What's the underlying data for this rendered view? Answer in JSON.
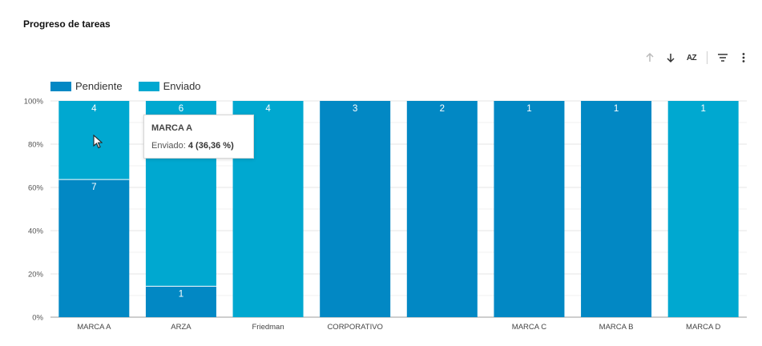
{
  "title": "Progreso de tareas",
  "toolbar": {
    "icons": [
      "arrow-up-icon",
      "arrow-down-icon",
      "sort-az-icon",
      "filter-icon",
      "more-vert-icon"
    ],
    "sort_label": "AZ"
  },
  "colors": {
    "pendiente": "#0288C4",
    "enviado": "#00A8D0"
  },
  "chart_data": {
    "type": "bar",
    "stacked": true,
    "normalized": true,
    "categories": [
      "MARCA A",
      "ARZA",
      "Friedman",
      "CORPORATIVO",
      "",
      "MARCA C",
      "MARCA B",
      "MARCA D"
    ],
    "series": [
      {
        "name": "Pendiente",
        "values": [
          7,
          1,
          0,
          3,
          2,
          1,
          1,
          0
        ]
      },
      {
        "name": "Enviado",
        "values": [
          4,
          6,
          4,
          0,
          0,
          0,
          0,
          1
        ]
      }
    ],
    "y_ticks": [
      "0%",
      "20%",
      "40%",
      "60%",
      "80%",
      "100%"
    ],
    "ylim": [
      0,
      100
    ],
    "legend_position": "top-left",
    "grid": true
  },
  "tooltip": {
    "title": "MARCA A",
    "series_label": "Enviado:",
    "value": "4 (36,36 %)"
  }
}
